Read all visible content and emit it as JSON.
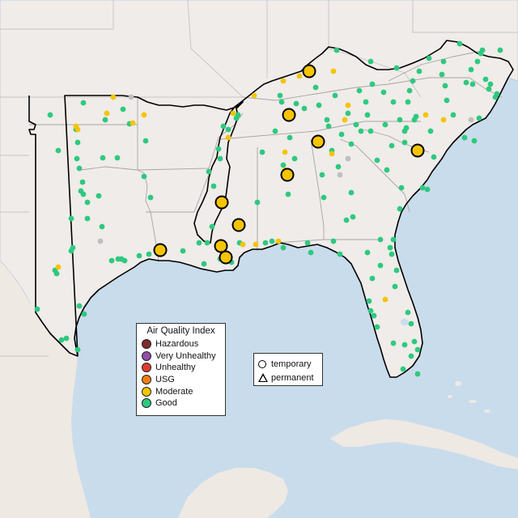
{
  "legend": {
    "title": "Air Quality Index",
    "categories": [
      {
        "label": "Hazardous",
        "color": "#7e2b2b"
      },
      {
        "label": "Very Unhealthy",
        "color": "#8f4fa8"
      },
      {
        "label": "Unhealthy",
        "color": "#e03c31"
      },
      {
        "label": "USG",
        "color": "#f07e14"
      },
      {
        "label": "Moderate",
        "color": "#f5c400"
      },
      {
        "label": "Good",
        "color": "#2ec97e"
      }
    ]
  },
  "shape_legend": {
    "temporary": "temporary",
    "permanent": "permanent"
  },
  "colors": {
    "water": "#c9dceb",
    "land": "#efecea",
    "region_border": "#000000",
    "state_line": "#c4bfbf",
    "no_data": "#bfbfbf"
  }
}
